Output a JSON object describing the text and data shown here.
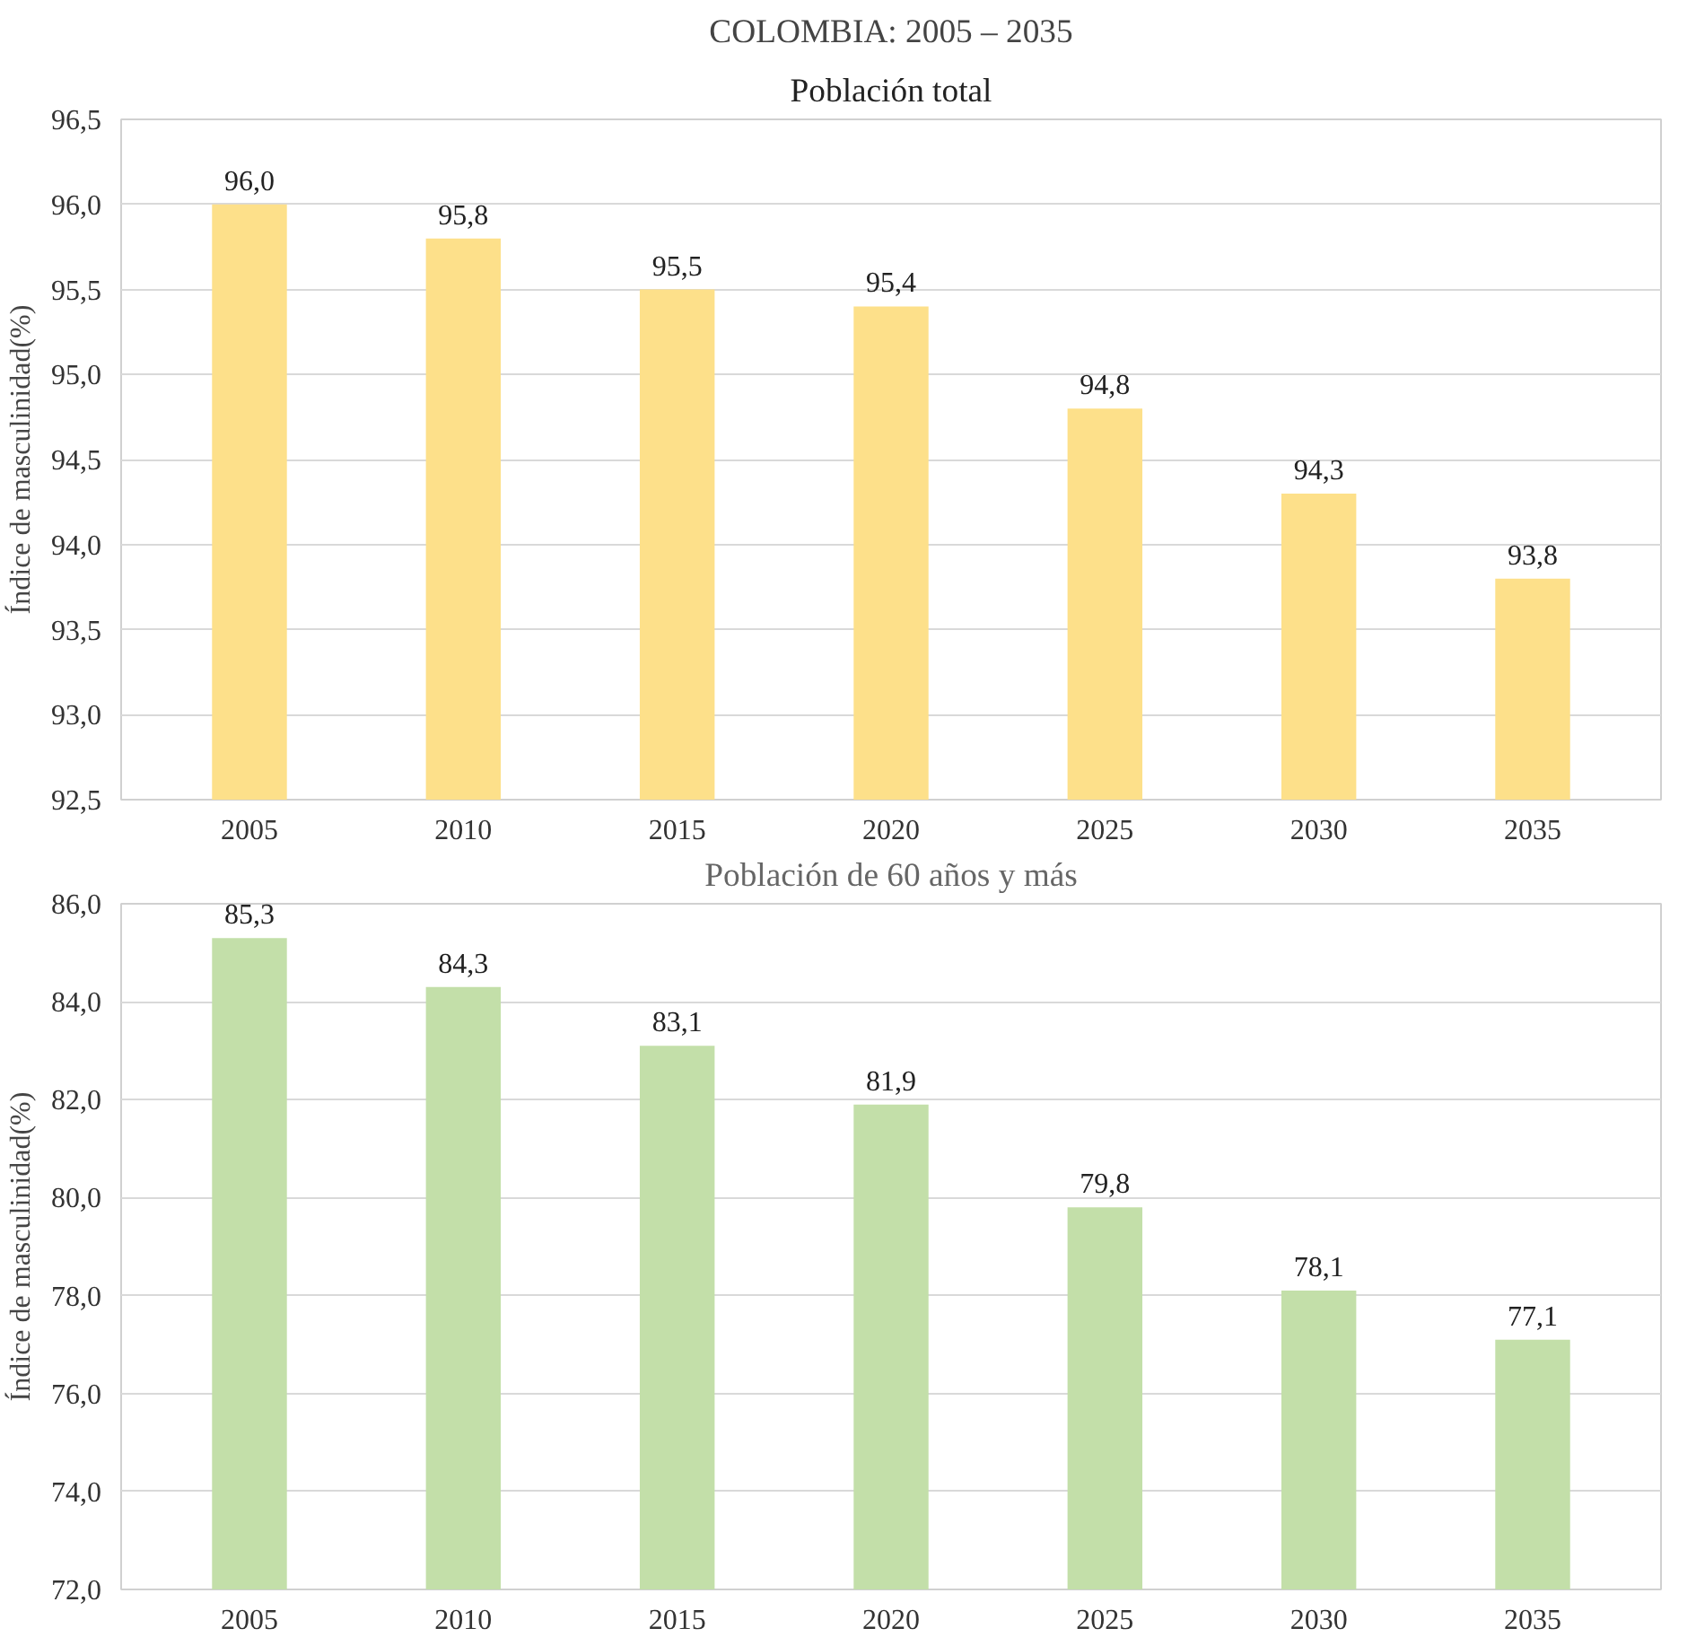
{
  "chart_data": [
    {
      "type": "bar",
      "title": "Población total",
      "ylabel": "Índice de masculinidad(%)",
      "annotations": [
        "COLOMBIA: 2005 – 2035"
      ],
      "categories": [
        "2005",
        "2010",
        "2015",
        "2020",
        "2025",
        "2030",
        "2035"
      ],
      "values": [
        96.0,
        95.8,
        95.5,
        95.4,
        94.8,
        94.3,
        93.8
      ],
      "color": "#fde08a",
      "value_labels": [
        "96,0",
        "95,8",
        "95,5",
        "95,4",
        "94,8",
        "94,3",
        "93,8"
      ],
      "ylim": [
        92.5,
        96.5
      ],
      "yticks": [
        {
          "value": 92.5,
          "label": "92,5"
        },
        {
          "value": 93.0,
          "label": "93,0"
        },
        {
          "value": 93.5,
          "label": "93,5"
        },
        {
          "value": 94.0,
          "label": "94,0"
        },
        {
          "value": 94.5,
          "label": "94,5"
        },
        {
          "value": 95.0,
          "label": "95,0"
        },
        {
          "value": 95.5,
          "label": "95,5"
        },
        {
          "value": 96.0,
          "label": "96,0"
        },
        {
          "value": 96.5,
          "label": "96,5"
        }
      ],
      "grid": "y"
    },
    {
      "type": "bar",
      "title": "Población de 60 años y más",
      "ylabel": "Índice de masculinidad(%)",
      "categories": [
        "2005",
        "2010",
        "2015",
        "2020",
        "2025",
        "2030",
        "2035"
      ],
      "values": [
        85.3,
        84.3,
        83.1,
        81.9,
        79.8,
        78.1,
        77.1
      ],
      "color": "#c3dfa9",
      "value_labels": [
        "85,3",
        "84,3",
        "83,1",
        "81,9",
        "79,8",
        "78,1",
        "77,1"
      ],
      "ylim": [
        72.0,
        86.0
      ],
      "yticks": [
        {
          "value": 72.0,
          "label": "72,0"
        },
        {
          "value": 74.0,
          "label": "74,0"
        },
        {
          "value": 76.0,
          "label": "76,0"
        },
        {
          "value": 78.0,
          "label": "78,0"
        },
        {
          "value": 80.0,
          "label": "80,0"
        },
        {
          "value": 82.0,
          "label": "82,0"
        },
        {
          "value": 84.0,
          "label": "84,0"
        },
        {
          "value": 86.0,
          "label": "86,0"
        }
      ],
      "grid": "y"
    }
  ]
}
